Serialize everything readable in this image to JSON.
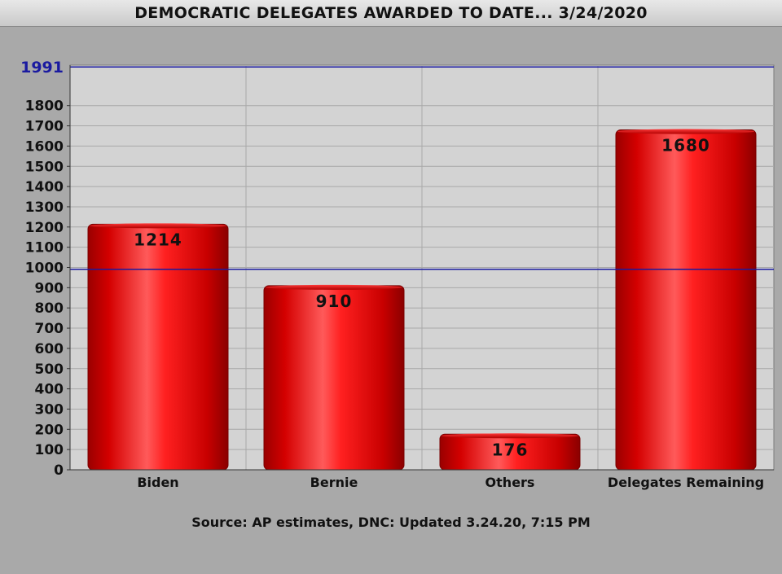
{
  "title": "DEMOCRATIC DELEGATES AWARDED TO DATE... 3/24/2020",
  "source": "Source: AP estimates, DNC: Updated 3.24.20, 7:15 PM",
  "colors": {
    "bar": "#e00000",
    "reference_line": "#1a1aa0",
    "plot_background": "#d3d3d3",
    "gridline": "#a8a8a8"
  },
  "chart_data": {
    "type": "bar",
    "title": "DEMOCRATIC DELEGATES AWARDED TO DATE... 3/24/2020",
    "categories": [
      "Biden",
      "Bernie",
      "Others",
      "Delegates Remaining"
    ],
    "values": [
      1214,
      910,
      176,
      1680
    ],
    "data_labels": [
      "1214",
      "910",
      "176",
      "1680"
    ],
    "ylim": [
      0,
      2000
    ],
    "yticks": [
      0,
      100,
      200,
      300,
      400,
      500,
      600,
      700,
      800,
      900,
      1000,
      1100,
      1200,
      1300,
      1400,
      1500,
      1600,
      1700,
      1800
    ],
    "reference_lines": [
      {
        "value": 1991,
        "label": "1991"
      },
      {
        "value": 991,
        "label": ""
      }
    ],
    "grid": true,
    "legend": "none"
  }
}
